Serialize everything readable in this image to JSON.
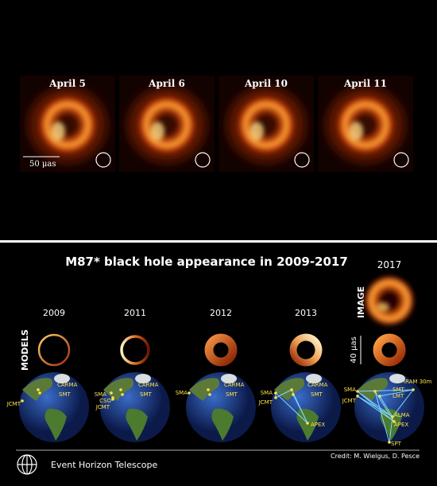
{
  "top": {
    "panels": [
      {
        "label": "April 5"
      },
      {
        "label": "April 6"
      },
      {
        "label": "April 10"
      },
      {
        "label": "April 11"
      }
    ],
    "scale_label": "50 μas"
  },
  "bottom": {
    "title": "M87* black hole appearance in 2009-2017",
    "image_year": "2017",
    "image_label": "IMAGE",
    "models_label": "MODELS",
    "scale_label": "40 μas",
    "years": [
      "2009",
      "2011",
      "2012",
      "2013"
    ],
    "globes": [
      {
        "stations": [
          "CARMA",
          "SMT",
          "JCMT"
        ]
      },
      {
        "stations": [
          "CARMA",
          "SMA",
          "SMT",
          "CSO",
          "JCMT"
        ]
      },
      {
        "stations": [
          "SMA",
          "CARMA",
          "SMT"
        ]
      },
      {
        "stations": [
          "SMA",
          "CARMA",
          "SMT",
          "JCMT",
          "APEX"
        ]
      },
      {
        "stations": [
          "SMA",
          "SMT",
          "LMT",
          "IRAM 30m",
          "JCMT",
          "ALMA",
          "APEX",
          "SPT"
        ]
      }
    ],
    "credit": "Credit: M. Wielgus, D. Pesce",
    "logo_text": "Event Horizon Telescope"
  }
}
